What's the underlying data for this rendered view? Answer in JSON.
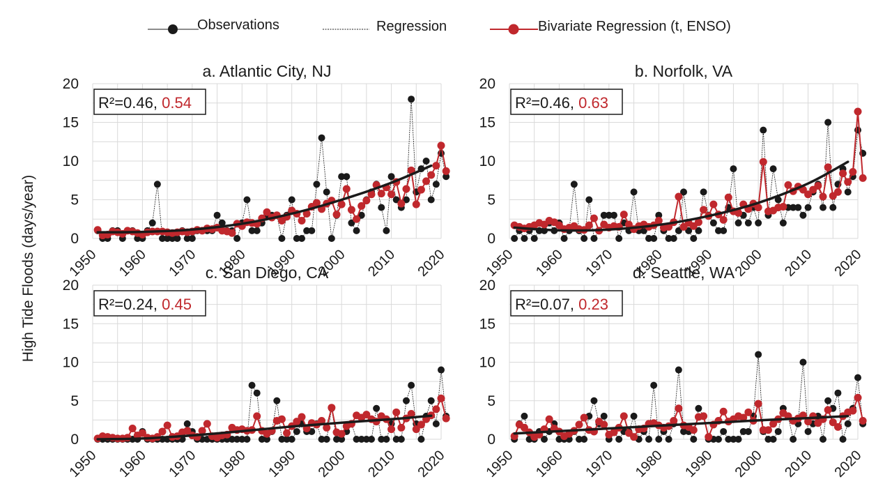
{
  "legend": {
    "observations": "Observations",
    "regression": "Regression",
    "bivariate": "Bivariate Regression (t, ENSO)"
  },
  "ylabel": "High Tide Floods (days/year)",
  "colors": {
    "observations": "#1a1a1a",
    "bivariate": "#c0282d",
    "regression": "#1a1a1a",
    "grid": "#d9d9d9"
  },
  "chart_data": [
    {
      "type": "line",
      "title": "a. Atlantic City, NJ",
      "r2_label": "R²=0.46,",
      "r2_red": "0.54",
      "xlim": [
        1950,
        2020
      ],
      "ylim": [
        0,
        20
      ],
      "xticks": [
        "1950",
        "1960",
        "1970",
        "1980",
        "1990",
        "2000",
        "2010",
        "2020"
      ],
      "yticks": [
        "0",
        "5",
        "10",
        "15",
        "20"
      ],
      "start_year": 1951,
      "observations": [
        1,
        0,
        0,
        1,
        1,
        0,
        1,
        1,
        0,
        0,
        1,
        2,
        7,
        0,
        0,
        0,
        0,
        1,
        0,
        0,
        1,
        1,
        1,
        1,
        3,
        2,
        1,
        1,
        0,
        2,
        5,
        1,
        1,
        2,
        3,
        3,
        3,
        0,
        3,
        5,
        0,
        0,
        1,
        1,
        7,
        13,
        6,
        0,
        3,
        8,
        8,
        2,
        1,
        3,
        5,
        6,
        7,
        4,
        1,
        8,
        5,
        4,
        5,
        18,
        6,
        9,
        10,
        5,
        7,
        11,
        8
      ],
      "bivariate": [
        1.1,
        0.4,
        0.5,
        0.9,
        0.8,
        0.6,
        1.0,
        0.9,
        0.7,
        0.5,
        0.8,
        0.9,
        0.9,
        0.9,
        0.8,
        0.7,
        0.8,
        0.9,
        0.8,
        0.9,
        1.1,
        1.0,
        1.3,
        1.2,
        1.4,
        1.0,
        0.9,
        0.7,
        1.9,
        1.6,
        2.1,
        2.0,
        1.9,
        2.6,
        3.4,
        2.7,
        3.0,
        2.3,
        2.8,
        3.6,
        3.2,
        2.3,
        3.2,
        4.1,
        4.6,
        3.8,
        4.5,
        4.9,
        3.1,
        4.4,
        6.4,
        3.7,
        2.5,
        4.2,
        4.9,
        5.7,
        6.9,
        5.8,
        6.6,
        5.7,
        7.3,
        4.5,
        6.4,
        8.8,
        4.4,
        6.3,
        7.4,
        8.2,
        9.4,
        12.0,
        8.7
      ],
      "regression": [
        [
          1951,
          0.8
        ],
        [
          1960,
          0.85
        ],
        [
          1970,
          1.15
        ],
        [
          1980,
          1.9
        ],
        [
          1990,
          3.2
        ],
        [
          2000,
          5.0
        ],
        [
          2010,
          7.2
        ],
        [
          2018,
          9.4
        ]
      ]
    },
    {
      "type": "line",
      "title": "b. Norfolk, VA",
      "r2_label": "R²=0.46,",
      "r2_red": "0.63",
      "xlim": [
        1950,
        2020
      ],
      "ylim": [
        0,
        20
      ],
      "xticks": [
        "1950",
        "1960",
        "1970",
        "1980",
        "1990",
        "2000",
        "2010",
        "2020"
      ],
      "yticks": [
        "0",
        "5",
        "10",
        "15",
        "20"
      ],
      "start_year": 1951,
      "observations": [
        0,
        1,
        0,
        1,
        0,
        1,
        1,
        2,
        1,
        2,
        0,
        1,
        7,
        1,
        0,
        5,
        0,
        1,
        3,
        3,
        3,
        0,
        2,
        1,
        6,
        1,
        1,
        0,
        0,
        3,
        1,
        0,
        0,
        1,
        6,
        1,
        0,
        1,
        6,
        3,
        2,
        1,
        1,
        4,
        9,
        2,
        3,
        2,
        4,
        2,
        14,
        3,
        9,
        5,
        2,
        4,
        4,
        4,
        3,
        4,
        6,
        7,
        4,
        15,
        4,
        7,
        9,
        6,
        8,
        14,
        11
      ],
      "bivariate": [
        1.7,
        1.5,
        1.3,
        1.5,
        1.7,
        2.0,
        1.8,
        2.3,
        2.1,
        1.7,
        1.2,
        1.4,
        1.6,
        1.2,
        1.1,
        1.7,
        2.6,
        1.0,
        1.8,
        1.4,
        1.6,
        1.5,
        3.1,
        1.8,
        1.2,
        1.6,
        1.8,
        1.5,
        1.7,
        2.3,
        1.4,
        1.5,
        2.1,
        5.4,
        1.5,
        2.0,
        1.6,
        2.1,
        3.7,
        2.9,
        4.4,
        3.1,
        2.4,
        5.3,
        3.5,
        3.3,
        4.4,
        3.8,
        4.5,
        4.0,
        9.9,
        3.5,
        3.6,
        4.0,
        4.1,
        6.9,
        6.1,
        6.7,
        6.3,
        5.7,
        6.3,
        6.8,
        5.4,
        9.2,
        5.5,
        6.0,
        8.4,
        7.3,
        8.6,
        16.4,
        7.8
      ],
      "regression": [
        [
          1951,
          1.4
        ],
        [
          1960,
          1.05
        ],
        [
          1970,
          1.15
        ],
        [
          1980,
          1.75
        ],
        [
          1990,
          2.9
        ],
        [
          2000,
          4.6
        ],
        [
          2010,
          7.1
        ],
        [
          2018,
          9.9
        ]
      ]
    },
    {
      "type": "line",
      "title": "c. San Diego, CA",
      "r2_label": "R²=0.24,",
      "r2_red": "0.45",
      "xlim": [
        1950,
        2020
      ],
      "ylim": [
        0,
        20
      ],
      "xticks": [
        "1950",
        "1960",
        "1970",
        "1980",
        "1990",
        "2000",
        "2010",
        "2020"
      ],
      "yticks": [
        "0",
        "5",
        "10",
        "15",
        "20"
      ],
      "start_year": 1951,
      "observations": [
        0,
        0,
        0,
        0,
        0,
        0,
        0,
        0,
        0,
        1,
        0,
        0,
        0,
        0,
        0,
        0,
        0,
        0,
        2,
        1,
        0,
        0,
        0,
        0,
        0,
        0,
        0,
        0,
        0,
        0,
        0,
        7,
        6,
        0,
        0,
        1,
        5,
        0,
        0,
        0,
        1,
        2,
        1,
        1,
        2,
        0,
        0,
        4,
        0,
        0,
        1,
        2,
        0,
        0,
        0,
        0,
        4,
        0,
        0,
        2,
        0,
        0,
        5,
        7,
        2,
        0,
        3,
        5,
        2,
        9,
        3
      ],
      "bivariate": [
        0.1,
        0.4,
        0.3,
        0.2,
        0.1,
        0.1,
        0.2,
        1.4,
        0.5,
        0.8,
        0.2,
        0.1,
        0.3,
        1.0,
        1.8,
        0.3,
        0.4,
        0.9,
        1.1,
        0.5,
        0.3,
        1.1,
        2.0,
        0.4,
        0.2,
        0.5,
        0.6,
        1.5,
        1.2,
        1.3,
        1.1,
        1.2,
        3.0,
        1.1,
        0.7,
        1.1,
        2.4,
        2.6,
        0.8,
        1.7,
        2.3,
        2.9,
        1.4,
        2.1,
        1.9,
        2.4,
        1.5,
        4.1,
        0.9,
        0.7,
        1.7,
        2.0,
        3.1,
        2.8,
        3.2,
        2.6,
        2.3,
        3.0,
        2.6,
        1.3,
        3.5,
        1.5,
        2.7,
        3.3,
        1.3,
        1.9,
        2.6,
        3.1,
        3.9,
        5.3,
        2.7
      ],
      "regression": [
        [
          1951,
          -0.05
        ],
        [
          1960,
          0.1
        ],
        [
          1970,
          0.5
        ],
        [
          1980,
          1.05
        ],
        [
          1990,
          1.65
        ],
        [
          2000,
          2.15
        ],
        [
          2010,
          2.6
        ],
        [
          2018,
          3.05
        ]
      ]
    },
    {
      "type": "line",
      "title": "d. Seattle, WA",
      "r2_label": "R²=0.07,",
      "r2_red": "0.23",
      "xlim": [
        1950,
        2020
      ],
      "ylim": [
        0,
        20
      ],
      "xticks": [
        "1950",
        "1960",
        "1970",
        "1980",
        "1990",
        "2000",
        "2010",
        "2020"
      ],
      "yticks": [
        "0",
        "5",
        "10",
        "15",
        "20"
      ],
      "start_year": 1951,
      "observations": [
        0,
        2,
        3,
        0,
        0,
        1,
        0,
        1,
        2,
        0,
        0,
        0,
        1,
        0,
        0,
        3,
        5,
        2,
        3,
        0,
        1,
        0,
        1,
        1,
        3,
        0,
        1,
        0,
        7,
        0,
        1,
        0,
        2,
        9,
        1,
        1,
        0,
        4,
        3,
        0,
        0,
        0,
        1,
        0,
        0,
        0,
        1,
        1,
        3,
        11,
        1,
        0,
        0,
        1,
        4,
        3,
        0,
        2,
        10,
        1,
        2,
        3,
        0,
        5,
        4,
        6,
        0,
        2,
        4,
        8,
        2
      ],
      "bivariate": [
        0.4,
        1.9,
        1.5,
        0.9,
        0.3,
        0.6,
        1.3,
        2.6,
        1.4,
        1.0,
        0.4,
        0.7,
        1.1,
        1.9,
        2.8,
        1.2,
        1.0,
        2.3,
        1.9,
        0.6,
        0.9,
        1.5,
        3.0,
        0.8,
        0.3,
        1.3,
        1.4,
        2.0,
        2.1,
        1.8,
        1.5,
        1.7,
        2.4,
        4.0,
        1.8,
        1.6,
        1.2,
        2.9,
        3.0,
        0.3,
        1.9,
        2.4,
        3.6,
        2.3,
        2.6,
        3.0,
        2.8,
        3.5,
        2.4,
        4.6,
        1.2,
        1.2,
        2.0,
        2.6,
        3.4,
        3.0,
        2.4,
        2.7,
        3.1,
        2.3,
        3.0,
        2.1,
        2.6,
        3.8,
        2.2,
        1.6,
        3.0,
        3.5,
        3.7,
        5.4,
        2.4
      ],
      "regression": [
        [
          1951,
          0.75
        ],
        [
          1960,
          1.05
        ],
        [
          1970,
          1.4
        ],
        [
          1980,
          1.75
        ],
        [
          1990,
          2.1
        ],
        [
          2000,
          2.45
        ],
        [
          2010,
          2.75
        ],
        [
          2018,
          3.0
        ]
      ]
    }
  ]
}
